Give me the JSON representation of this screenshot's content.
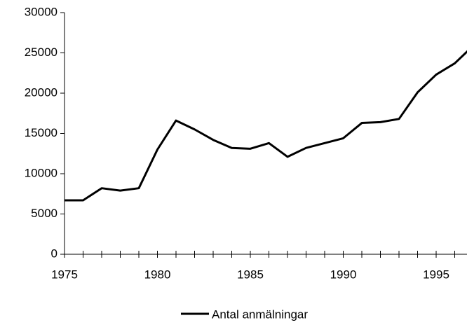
{
  "chart_data": {
    "type": "line",
    "x": [
      1975,
      1976,
      1977,
      1978,
      1979,
      1980,
      1981,
      1982,
      1983,
      1984,
      1985,
      1986,
      1987,
      1988,
      1989,
      1990,
      1991,
      1992,
      1993,
      1994,
      1995,
      1996,
      1997
    ],
    "series": [
      {
        "name": "Antal anmälningar",
        "color": "#000000",
        "values": [
          6700,
          6700,
          8200,
          7900,
          8200,
          13000,
          16600,
          15500,
          14200,
          13200,
          13100,
          13800,
          12100,
          13200,
          13800,
          14400,
          16300,
          16400,
          16800,
          20100,
          22300,
          23700,
          25900
        ]
      }
    ],
    "xlim": [
      1975,
      1997
    ],
    "xticks": [
      1975,
      1980,
      1985,
      1990,
      1995
    ],
    "ylim": [
      0,
      30000
    ],
    "yticks": [
      0,
      5000,
      10000,
      15000,
      20000,
      25000,
      30000
    ],
    "legend": "bottom"
  }
}
